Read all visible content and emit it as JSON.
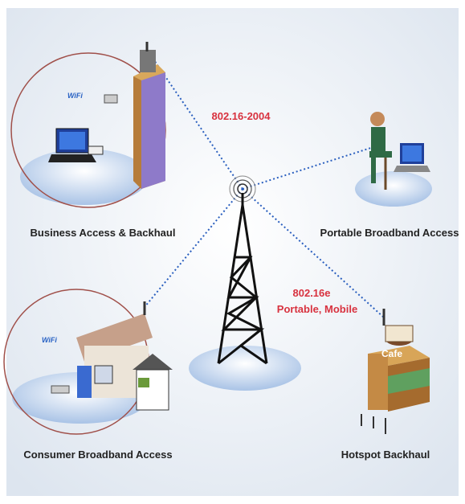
{
  "standards": {
    "fixed": "802.16-2004",
    "mobile": "802.16e",
    "mobile_note": "Portable, Mobile"
  },
  "nodes": [
    {
      "label": "Business Access & Backhaul",
      "wifi": "WiFi"
    },
    {
      "label": "Portable Broadband Access"
    },
    {
      "label": "Consumer Broadband Access",
      "wifi": "WiFi"
    },
    {
      "label": "Hotspot Backhaul",
      "sign": "Cafe"
    }
  ]
}
